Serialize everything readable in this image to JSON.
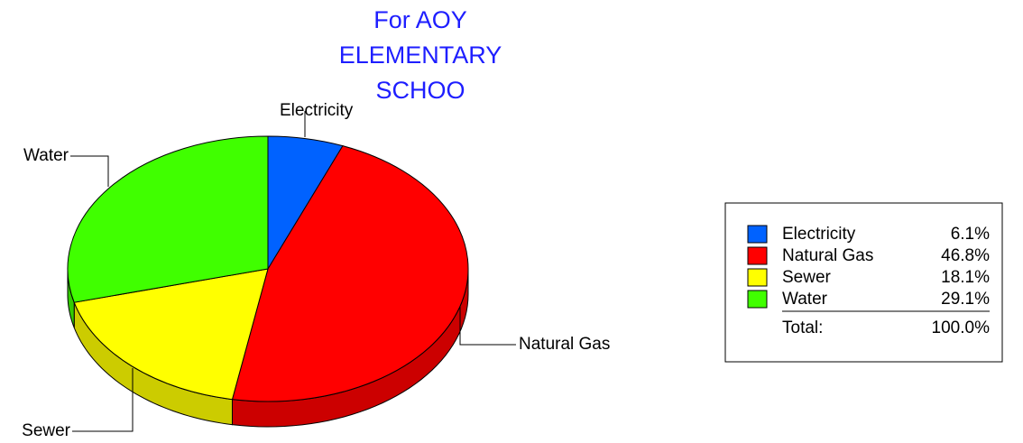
{
  "chart_data": {
    "type": "pie",
    "title_lines": [
      "For AOY",
      "ELEMENTARY",
      "SCHOO"
    ],
    "categories": [
      "Electricity",
      "Natural Gas",
      "Sewer",
      "Water"
    ],
    "values": [
      6.1,
      46.8,
      18.1,
      29.1
    ],
    "value_labels": [
      "6.1%",
      "46.8%",
      "18.1%",
      "29.1%"
    ],
    "colors": [
      "#0062ff",
      "#ff0000",
      "#ffff00",
      "#40ff00"
    ],
    "legend": "right",
    "total": {
      "label": "Total:",
      "value": 100.0,
      "value_label": "100.0%"
    }
  }
}
